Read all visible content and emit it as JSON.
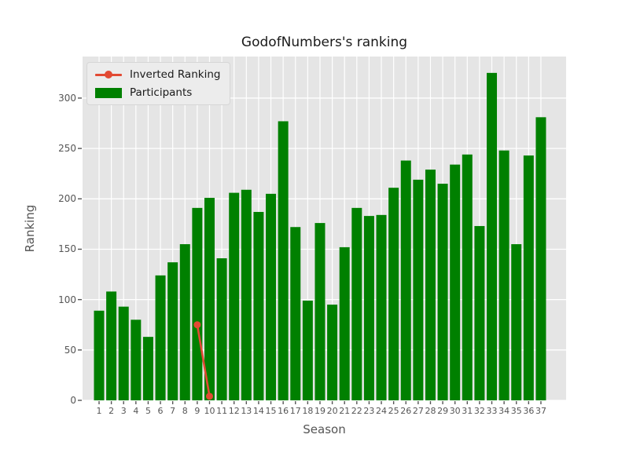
{
  "chart_data": {
    "type": "bar",
    "title": "GodofNumbers's ranking",
    "xlabel": "Season",
    "ylabel": "Ranking",
    "categories": [
      1,
      2,
      3,
      4,
      5,
      6,
      7,
      8,
      9,
      10,
      11,
      12,
      13,
      14,
      15,
      16,
      17,
      18,
      19,
      20,
      21,
      22,
      23,
      24,
      25,
      26,
      27,
      28,
      29,
      30,
      31,
      32,
      33,
      34,
      35,
      36,
      37
    ],
    "series": [
      {
        "name": "Participants",
        "type": "bar",
        "color": "#008000",
        "values": [
          89,
          108,
          93,
          80,
          63,
          124,
          137,
          155,
          191,
          201,
          141,
          206,
          209,
          187,
          205,
          277,
          172,
          99,
          176,
          95,
          152,
          191,
          183,
          184,
          211,
          238,
          219,
          229,
          215,
          234,
          244,
          173,
          325,
          248,
          155,
          243,
          281
        ]
      },
      {
        "name": "Inverted Ranking",
        "type": "line",
        "color": "#e24a33",
        "points": [
          {
            "x": 9,
            "y": 75
          },
          {
            "x": 10,
            "y": 4
          }
        ]
      }
    ],
    "ylim": [
      0,
      341.25
    ],
    "yticks": [
      0,
      50,
      100,
      150,
      200,
      250,
      300
    ],
    "grid": true,
    "legend_position": "upper left",
    "plot_background": "#e5e5e5",
    "grid_color": "#ffffff",
    "tick_color": "#555555"
  },
  "legend": {
    "inverted_ranking_label": "Inverted Ranking",
    "participants_label": "Participants"
  }
}
